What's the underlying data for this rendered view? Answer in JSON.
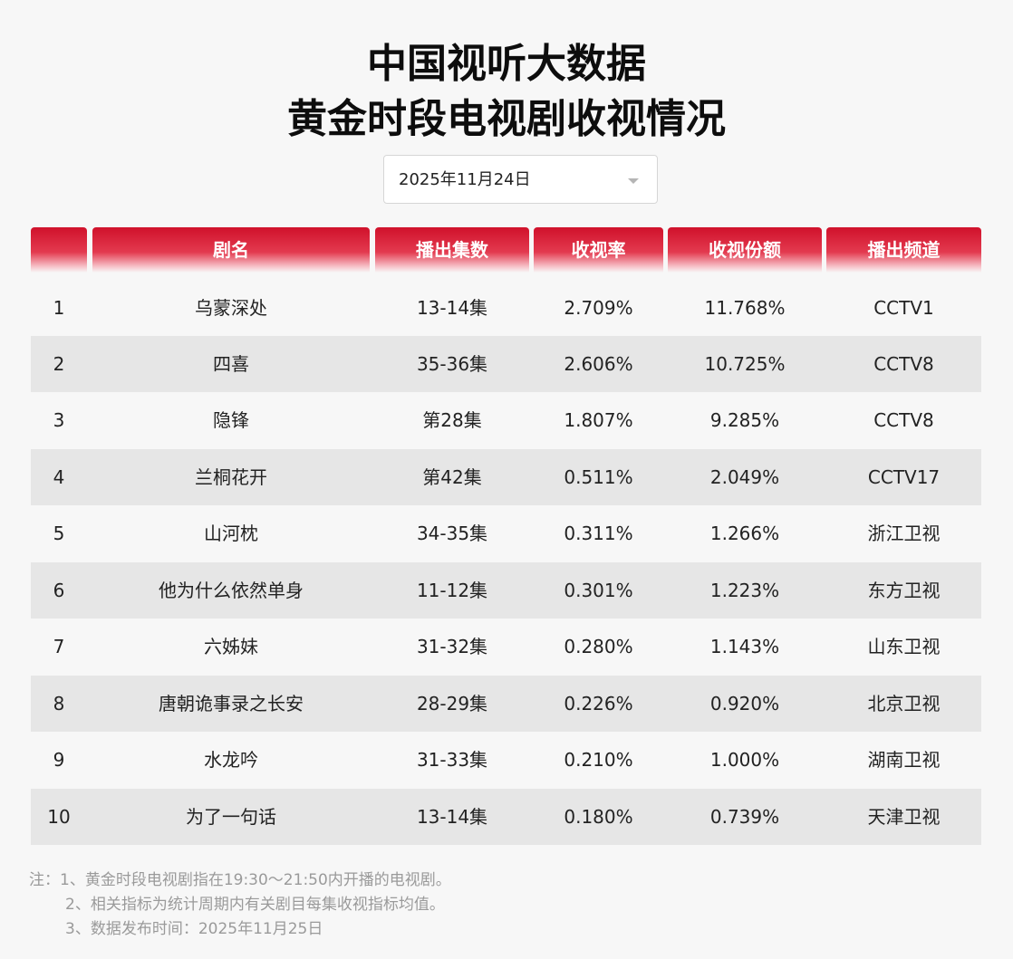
{
  "header": {
    "title_line1": "中国视听大数据",
    "title_line2": "黄金时段电视剧收视情况"
  },
  "date_picker": {
    "value": "2025年11月24日"
  },
  "table": {
    "columns": [
      "",
      "剧名",
      "播出集数",
      "收视率",
      "收视份额",
      "播出频道"
    ],
    "rows": [
      {
        "rank": "1",
        "name": "乌蒙深处",
        "episodes": "13-14集",
        "rating": "2.709%",
        "share": "11.768%",
        "channel": "CCTV1"
      },
      {
        "rank": "2",
        "name": "四喜",
        "episodes": "35-36集",
        "rating": "2.606%",
        "share": "10.725%",
        "channel": "CCTV8"
      },
      {
        "rank": "3",
        "name": "隐锋",
        "episodes": "第28集",
        "rating": "1.807%",
        "share": "9.285%",
        "channel": "CCTV8"
      },
      {
        "rank": "4",
        "name": "兰桐花开",
        "episodes": "第42集",
        "rating": "0.511%",
        "share": "2.049%",
        "channel": "CCTV17"
      },
      {
        "rank": "5",
        "name": "山河枕",
        "episodes": "34-35集",
        "rating": "0.311%",
        "share": "1.266%",
        "channel": "浙江卫视"
      },
      {
        "rank": "6",
        "name": "他为什么依然单身",
        "episodes": "11-12集",
        "rating": "0.301%",
        "share": "1.223%",
        "channel": "东方卫视"
      },
      {
        "rank": "7",
        "name": "六姊妹",
        "episodes": "31-32集",
        "rating": "0.280%",
        "share": "1.143%",
        "channel": "山东卫视"
      },
      {
        "rank": "8",
        "name": "唐朝诡事录之长安",
        "episodes": "28-29集",
        "rating": "0.226%",
        "share": "0.920%",
        "channel": "北京卫视"
      },
      {
        "rank": "9",
        "name": "水龙吟",
        "episodes": "31-33集",
        "rating": "0.210%",
        "share": "1.000%",
        "channel": "湖南卫视"
      },
      {
        "rank": "10",
        "name": "为了一句话",
        "episodes": "13-14集",
        "rating": "0.180%",
        "share": "0.739%",
        "channel": "天津卫视"
      }
    ]
  },
  "notes": {
    "line1": "注：1、黄金时段电视剧指在19:30～21:50内开播的电视剧。",
    "line2": "2、相关指标为统计周期内有关剧目每集收视指标均值。",
    "line3": "3、数据发布时间：2025年11月25日"
  },
  "colors": {
    "header_red": "#d0112b",
    "alt_row": "#e6e6e6",
    "background": "#f7f7f7"
  }
}
